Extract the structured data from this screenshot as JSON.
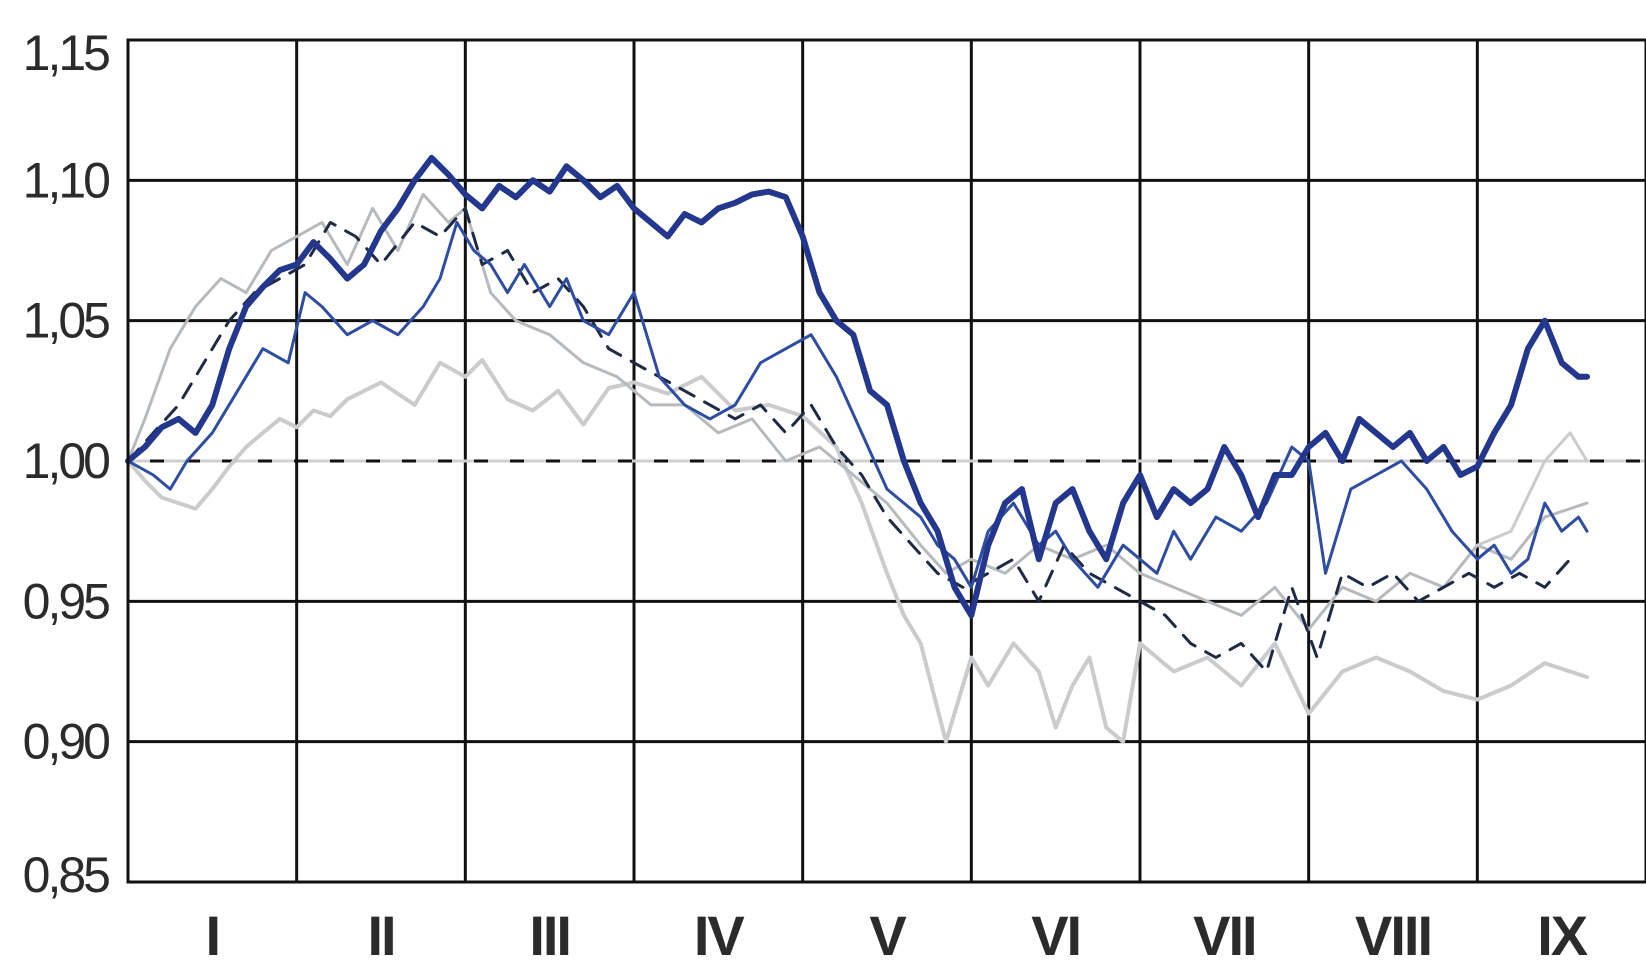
{
  "chart_data": {
    "type": "line",
    "title": "",
    "xlabel": "",
    "ylabel": "",
    "x_domain": [
      0,
      9
    ],
    "ylim": [
      0.85,
      1.15
    ],
    "grid": true,
    "legend": "none",
    "categories": [
      "I",
      "II",
      "III",
      "IV",
      "V",
      "VI",
      "VII",
      "VIII",
      "IX"
    ],
    "y_ticks": [
      {
        "value": 1.15,
        "label": "1,15"
      },
      {
        "value": 1.1,
        "label": "1,10"
      },
      {
        "value": 1.05,
        "label": "1,05"
      },
      {
        "value": 1.0,
        "label": "1,00"
      },
      {
        "value": 0.95,
        "label": "0,95"
      },
      {
        "value": 0.9,
        "label": "0,90"
      },
      {
        "value": 0.85,
        "label": "0,85"
      }
    ],
    "reference_line": {
      "value": 1.0,
      "color": "#d0d0d0",
      "dash": true
    },
    "series": [
      {
        "color": "#c9cbcd",
        "dash": false,
        "width": 4,
        "x": [
          0,
          0.1,
          0.2,
          0.3,
          0.4,
          0.5,
          0.6,
          0.7,
          0.8,
          0.9,
          1.0,
          1.1,
          1.2,
          1.3,
          1.5,
          1.7,
          1.85,
          2.0,
          2.1,
          2.25,
          2.4,
          2.55,
          2.7,
          2.85,
          3.0,
          3.2,
          3.4,
          3.6,
          3.8,
          4.0,
          4.2,
          4.35,
          4.5,
          4.6,
          4.7,
          4.85,
          5.0,
          5.1,
          5.25,
          5.4,
          5.5,
          5.6,
          5.7,
          5.8,
          5.9,
          6.0,
          6.2,
          6.4,
          6.6,
          6.8,
          7.0,
          7.2,
          7.4,
          7.6,
          7.8,
          8.0,
          8.2,
          8.4,
          8.65
        ],
        "y": [
          1.0,
          0.993,
          0.987,
          0.985,
          0.983,
          0.99,
          0.998,
          1.005,
          1.01,
          1.015,
          1.012,
          1.018,
          1.016,
          1.022,
          1.028,
          1.02,
          1.035,
          1.03,
          1.036,
          1.022,
          1.018,
          1.025,
          1.013,
          1.026,
          1.028,
          1.024,
          1.03,
          1.018,
          1.02,
          1.016,
          1.005,
          0.985,
          0.96,
          0.945,
          0.935,
          0.9,
          0.93,
          0.92,
          0.935,
          0.925,
          0.905,
          0.92,
          0.93,
          0.905,
          0.9,
          0.935,
          0.925,
          0.93,
          0.92,
          0.935,
          0.91,
          0.925,
          0.93,
          0.925,
          0.918,
          0.915,
          0.92,
          0.928,
          0.923
        ]
      },
      {
        "color": "#b7babd",
        "dash": false,
        "width": 3,
        "x": [
          0,
          0.1,
          0.25,
          0.4,
          0.55,
          0.7,
          0.85,
          1.0,
          1.15,
          1.3,
          1.45,
          1.6,
          1.75,
          1.9,
          2.0,
          2.15,
          2.3,
          2.5,
          2.7,
          2.9,
          3.1,
          3.3,
          3.5,
          3.7,
          3.9,
          4.1,
          4.3,
          4.5,
          4.7,
          4.85,
          5.0,
          5.2,
          5.4,
          5.6,
          5.8,
          6.0,
          6.2,
          6.4,
          6.6,
          6.8,
          7.0,
          7.2,
          7.4,
          7.6,
          7.8,
          8.0,
          8.2,
          8.4,
          8.65
        ],
        "y": [
          1.0,
          1.015,
          1.04,
          1.055,
          1.065,
          1.06,
          1.075,
          1.08,
          1.085,
          1.07,
          1.09,
          1.075,
          1.095,
          1.085,
          1.09,
          1.06,
          1.05,
          1.045,
          1.035,
          1.03,
          1.02,
          1.02,
          1.01,
          1.015,
          1.0,
          1.005,
          0.995,
          0.985,
          0.97,
          0.96,
          0.965,
          0.96,
          0.97,
          0.965,
          0.97,
          0.96,
          0.955,
          0.95,
          0.945,
          0.955,
          0.94,
          0.955,
          0.95,
          0.96,
          0.955,
          0.97,
          0.965,
          0.98,
          0.985
        ]
      },
      {
        "color": "#c9cbcd",
        "dash": false,
        "width": 3,
        "x": [
          8.0,
          8.2,
          8.4,
          8.55,
          8.65
        ],
        "y": [
          0.97,
          0.975,
          1.0,
          1.01,
          1.0
        ]
      },
      {
        "color": "#1f2a44",
        "dash": true,
        "width": 3,
        "x": [
          0,
          0.15,
          0.3,
          0.45,
          0.6,
          0.75,
          0.9,
          1.05,
          1.2,
          1.35,
          1.5,
          1.7,
          1.85,
          2.0,
          2.1,
          2.25,
          2.4,
          2.55,
          2.7,
          2.85,
          3.0,
          3.15,
          3.3,
          3.45,
          3.6,
          3.75,
          3.9,
          4.05,
          4.2,
          4.35,
          4.5,
          4.65,
          4.8,
          4.95,
          5.1,
          5.25,
          5.4,
          5.55,
          5.7,
          5.85,
          6.0,
          6.15,
          6.3,
          6.45,
          6.6,
          6.75,
          6.9,
          7.05,
          7.2,
          7.35,
          7.5,
          7.65,
          7.8,
          7.95,
          8.1,
          8.25,
          8.4,
          8.55
        ],
        "y": [
          1.0,
          1.01,
          1.02,
          1.035,
          1.05,
          1.06,
          1.065,
          1.07,
          1.085,
          1.08,
          1.07,
          1.085,
          1.08,
          1.09,
          1.07,
          1.075,
          1.06,
          1.065,
          1.055,
          1.04,
          1.035,
          1.03,
          1.025,
          1.02,
          1.015,
          1.02,
          1.01,
          1.02,
          1.005,
          0.995,
          0.98,
          0.97,
          0.96,
          0.955,
          0.96,
          0.965,
          0.95,
          0.97,
          0.96,
          0.955,
          0.95,
          0.945,
          0.935,
          0.93,
          0.935,
          0.925,
          0.955,
          0.93,
          0.96,
          0.955,
          0.96,
          0.95,
          0.955,
          0.96,
          0.955,
          0.96,
          0.955,
          0.965
        ]
      },
      {
        "color": "#2e4da3",
        "dash": false,
        "width": 3,
        "x": [
          0,
          0.15,
          0.25,
          0.35,
          0.5,
          0.65,
          0.8,
          0.95,
          1.05,
          1.15,
          1.3,
          1.45,
          1.6,
          1.75,
          1.85,
          1.95,
          2.05,
          2.15,
          2.25,
          2.35,
          2.5,
          2.6,
          2.7,
          2.85,
          3.0,
          3.15,
          3.3,
          3.45,
          3.6,
          3.75,
          3.9,
          4.05,
          4.2,
          4.35,
          4.5,
          4.6,
          4.7,
          4.8,
          4.9,
          5.0,
          5.1,
          5.25,
          5.4,
          5.5,
          5.6,
          5.75,
          5.9,
          6.0,
          6.1,
          6.2,
          6.3,
          6.45,
          6.6,
          6.75,
          6.9,
          7.0,
          7.1,
          7.25,
          7.4,
          7.55,
          7.7,
          7.85,
          8.0,
          8.1,
          8.2,
          8.3,
          8.4,
          8.5,
          8.6,
          8.65
        ],
        "y": [
          1.0,
          0.995,
          0.99,
          1.0,
          1.01,
          1.025,
          1.04,
          1.035,
          1.06,
          1.055,
          1.045,
          1.05,
          1.045,
          1.055,
          1.065,
          1.085,
          1.075,
          1.07,
          1.06,
          1.07,
          1.055,
          1.065,
          1.05,
          1.045,
          1.06,
          1.03,
          1.02,
          1.015,
          1.02,
          1.035,
          1.04,
          1.045,
          1.03,
          1.01,
          0.99,
          0.985,
          0.98,
          0.97,
          0.965,
          0.955,
          0.975,
          0.985,
          0.97,
          0.975,
          0.965,
          0.955,
          0.97,
          0.965,
          0.96,
          0.975,
          0.965,
          0.98,
          0.975,
          0.985,
          1.005,
          1.0,
          0.96,
          0.99,
          0.995,
          1.0,
          0.99,
          0.975,
          0.965,
          0.97,
          0.96,
          0.965,
          0.985,
          0.975,
          0.98,
          0.975
        ]
      },
      {
        "color": "#24378f",
        "dash": false,
        "width": 6,
        "x": [
          0,
          0.1,
          0.2,
          0.3,
          0.4,
          0.5,
          0.6,
          0.7,
          0.8,
          0.9,
          1.0,
          1.1,
          1.2,
          1.3,
          1.4,
          1.5,
          1.6,
          1.7,
          1.8,
          1.9,
          2.0,
          2.1,
          2.2,
          2.3,
          2.4,
          2.5,
          2.6,
          2.7,
          2.8,
          2.9,
          3.0,
          3.1,
          3.2,
          3.3,
          3.4,
          3.5,
          3.6,
          3.7,
          3.8,
          3.9,
          4.0,
          4.1,
          4.2,
          4.3,
          4.4,
          4.5,
          4.6,
          4.7,
          4.8,
          4.9,
          5.0,
          5.1,
          5.2,
          5.3,
          5.4,
          5.5,
          5.6,
          5.7,
          5.8,
          5.9,
          6.0,
          6.1,
          6.2,
          6.3,
          6.4,
          6.5,
          6.6,
          6.7,
          6.8,
          6.9,
          7.0,
          7.1,
          7.2,
          7.3,
          7.4,
          7.5,
          7.6,
          7.7,
          7.8,
          7.9,
          8.0,
          8.1,
          8.2,
          8.3,
          8.4,
          8.5,
          8.6,
          8.65
        ],
        "y": [
          1.0,
          1.005,
          1.012,
          1.015,
          1.01,
          1.02,
          1.04,
          1.055,
          1.062,
          1.068,
          1.07,
          1.078,
          1.072,
          1.065,
          1.07,
          1.082,
          1.09,
          1.1,
          1.108,
          1.102,
          1.095,
          1.09,
          1.098,
          1.094,
          1.1,
          1.096,
          1.105,
          1.1,
          1.094,
          1.098,
          1.09,
          1.085,
          1.08,
          1.088,
          1.085,
          1.09,
          1.092,
          1.095,
          1.096,
          1.094,
          1.08,
          1.06,
          1.05,
          1.045,
          1.025,
          1.02,
          1.0,
          0.985,
          0.975,
          0.955,
          0.945,
          0.97,
          0.985,
          0.99,
          0.965,
          0.985,
          0.99,
          0.975,
          0.965,
          0.985,
          0.995,
          0.98,
          0.99,
          0.985,
          0.99,
          1.005,
          0.995,
          0.98,
          0.995,
          0.995,
          1.005,
          1.01,
          1.0,
          1.015,
          1.01,
          1.005,
          1.01,
          1.0,
          1.005,
          0.995,
          0.998,
          1.01,
          1.02,
          1.04,
          1.05,
          1.035,
          1.03,
          1.03
        ]
      }
    ]
  }
}
